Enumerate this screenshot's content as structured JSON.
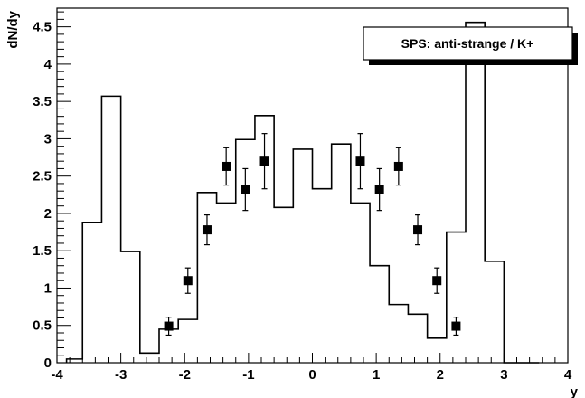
{
  "chart_data": {
    "type": "histogram",
    "title": "",
    "xlabel": "y",
    "ylabel": "dN/dy",
    "xlim": [
      -4,
      4
    ],
    "ylim": [
      0,
      4.75
    ],
    "grid": false,
    "legend": {
      "text": "SPS: anti-strange / K+",
      "placement": "top-right"
    },
    "x_ticks": [
      {
        "value": -4,
        "label": "-4"
      },
      {
        "value": -3,
        "label": "-3"
      },
      {
        "value": -2,
        "label": "-2"
      },
      {
        "value": -1,
        "label": "-1"
      },
      {
        "value": 0,
        "label": "0"
      },
      {
        "value": 1,
        "label": "1"
      },
      {
        "value": 2,
        "label": "2"
      },
      {
        "value": 3,
        "label": "3"
      },
      {
        "value": 4,
        "label": "4"
      }
    ],
    "y_ticks": [
      {
        "value": 0,
        "label": "0"
      },
      {
        "value": 0.5,
        "label": "0.5"
      },
      {
        "value": 1,
        "label": "1"
      },
      {
        "value": 1.5,
        "label": "1.5"
      },
      {
        "value": 2,
        "label": "2"
      },
      {
        "value": 2.5,
        "label": "2.5"
      },
      {
        "value": 3,
        "label": "3"
      },
      {
        "value": 3.5,
        "label": "3.5"
      },
      {
        "value": 4,
        "label": "4"
      },
      {
        "value": 4.5,
        "label": "4.5"
      }
    ],
    "histogram": {
      "edges": [
        -3.85,
        -3.6,
        -3.3,
        -3.0,
        -2.7,
        -2.4,
        -2.1,
        -1.8,
        -1.5,
        -1.2,
        -0.9,
        -0.6,
        -0.3,
        0.0,
        0.3,
        0.6,
        0.9,
        1.2,
        1.5,
        1.8,
        2.1,
        2.4,
        2.7,
        3.0,
        3.3,
        3.55
      ],
      "values": [
        0.05,
        1.88,
        3.57,
        1.49,
        0.13,
        0.45,
        0.58,
        2.28,
        2.14,
        2.99,
        3.31,
        2.08,
        2.86,
        2.33,
        2.93,
        2.14,
        1.3,
        0.78,
        0.65,
        0.33,
        1.75,
        4.56,
        1.36,
        0.0,
        0.0
      ]
    },
    "points": [
      {
        "x": -2.25,
        "y": 0.49,
        "err": 0.12
      },
      {
        "x": -1.95,
        "y": 1.1,
        "err": 0.17
      },
      {
        "x": -1.65,
        "y": 1.78,
        "err": 0.2
      },
      {
        "x": -1.35,
        "y": 2.63,
        "err": 0.25
      },
      {
        "x": -1.05,
        "y": 2.32,
        "err": 0.28
      },
      {
        "x": -0.75,
        "y": 2.7,
        "err": 0.37
      },
      {
        "x": 0.75,
        "y": 2.7,
        "err": 0.37
      },
      {
        "x": 1.05,
        "y": 2.32,
        "err": 0.28
      },
      {
        "x": 1.35,
        "y": 2.63,
        "err": 0.25
      },
      {
        "x": 1.65,
        "y": 1.78,
        "err": 0.2
      },
      {
        "x": 1.95,
        "y": 1.1,
        "err": 0.17
      },
      {
        "x": 2.25,
        "y": 0.49,
        "err": 0.12
      }
    ]
  }
}
